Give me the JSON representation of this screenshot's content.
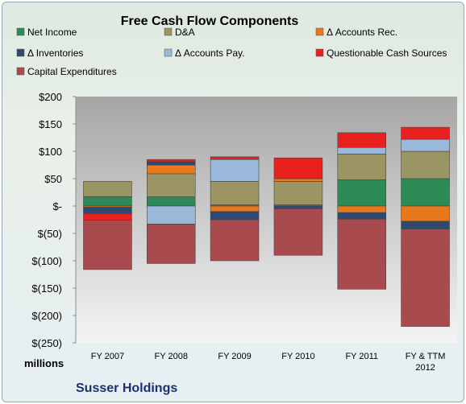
{
  "chart_data": {
    "type": "bar",
    "stacked": true,
    "title": "Free Cash Flow Components",
    "ylabel": "millions",
    "footer": "Susser Holdings",
    "categories": [
      "FY 2007",
      "FY 2008",
      "FY 2009",
      "FY 2010",
      "FY 2011",
      "FY & TTM 2012"
    ],
    "ylim": [
      -250,
      200
    ],
    "yticks": [
      200,
      150,
      100,
      50,
      0,
      -50,
      -100,
      -150,
      -200,
      -250
    ],
    "ytick_labels": [
      "$200",
      "$150",
      "$100",
      "$50",
      "$-",
      "$(50)",
      "$(100)",
      "$(150)",
      "$(200)",
      "$(250)"
    ],
    "grid": false,
    "legend_position": "top",
    "series": [
      {
        "name": "Net Income",
        "color": "#2e8b57",
        "values": [
          17,
          17,
          2,
          2,
          48,
          50
        ]
      },
      {
        "name": "D&A",
        "color": "#9b9463",
        "values": [
          28,
          42,
          43,
          43,
          47,
          50
        ]
      },
      {
        "name": "Δ Accounts Rec.",
        "color": "#e8781c",
        "values": [
          -2,
          16,
          -10,
          5,
          -12,
          -28
        ]
      },
      {
        "name": "Δ Inventories",
        "color": "#2e4a72",
        "values": [
          -12,
          6,
          -15,
          -5,
          -12,
          -14
        ]
      },
      {
        "name": "Δ Accounts Pay.",
        "color": "#9ab8da",
        "values": [
          0,
          -33,
          40,
          0,
          12,
          22
        ]
      },
      {
        "name": "Questionable Cash Sources",
        "color": "#e8201e",
        "values": [
          -12,
          4,
          5,
          38,
          27,
          22
        ]
      },
      {
        "name": "Capital Expenditures",
        "color": "#a94a4f",
        "values": [
          -90,
          -72,
          -75,
          -85,
          -128,
          -178
        ]
      }
    ]
  }
}
